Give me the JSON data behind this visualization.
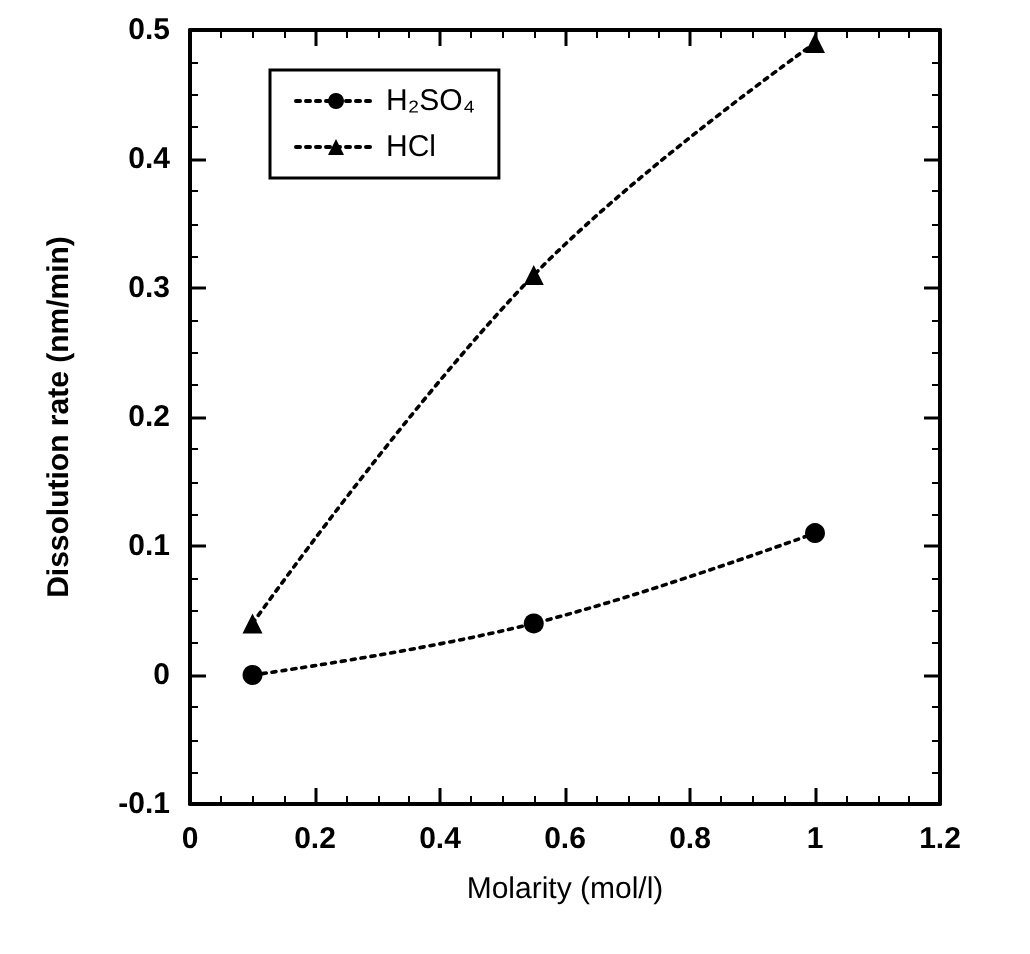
{
  "chart_data": {
    "type": "line",
    "xlabel": "Molarity (mol/l)",
    "ylabel": "Dissolution rate (nm/min)",
    "x": [
      0.1,
      0.55,
      1
    ],
    "series": [
      {
        "name": "H₂SO₄",
        "color": "#000000",
        "marker": "circle",
        "values": [
          0,
          0.04,
          0.11
        ]
      },
      {
        "name": "HCl",
        "color": "#000000",
        "marker": "triangle",
        "values": [
          0.04,
          0.31,
          0.49
        ]
      }
    ],
    "xlim": [
      0,
      1.2
    ],
    "xticks": [
      0,
      0.2,
      0.4,
      0.6,
      0.8,
      1,
      1.2
    ],
    "ylim": [
      -0.1,
      0.5
    ],
    "yticks": [
      -0.1,
      0,
      0.1,
      0.2,
      0.3,
      0.4,
      0.5
    ],
    "line_style": "dotted",
    "legend": "top left",
    "grid": false
  }
}
